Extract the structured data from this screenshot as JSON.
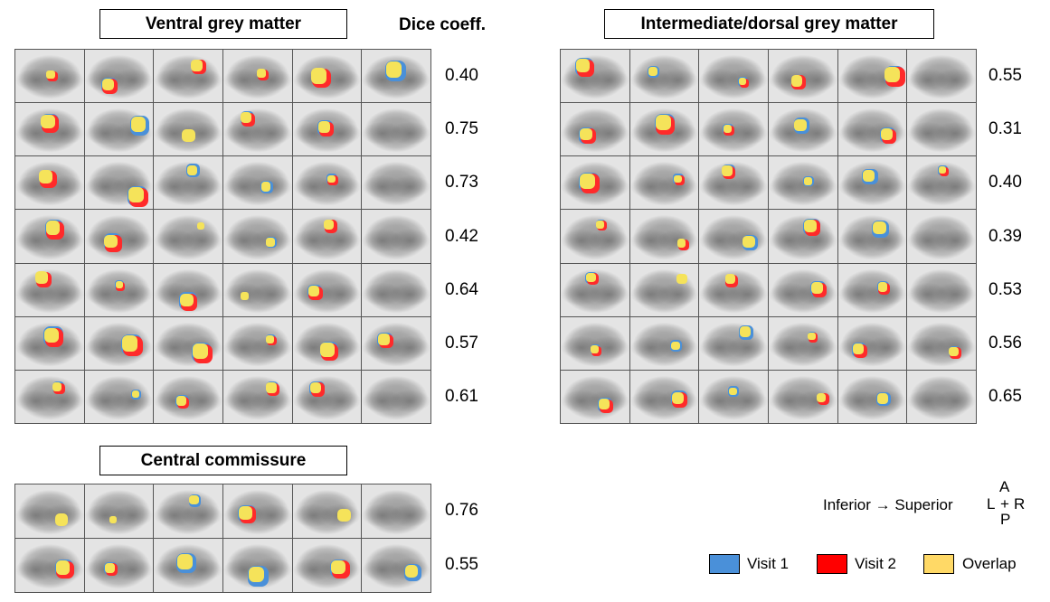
{
  "panels": {
    "ventral": {
      "title": "Ventral grey matter",
      "dice": [
        "0.40",
        "0.75",
        "0.73",
        "0.42",
        "0.64",
        "0.57",
        "0.61"
      ]
    },
    "intermediate": {
      "title": "Intermediate/dorsal grey matter",
      "dice": [
        "0.55",
        "0.31",
        "0.40",
        "0.39",
        "0.53",
        "0.56",
        "0.65"
      ]
    },
    "central": {
      "title": "Central commissure",
      "dice": [
        "0.76",
        "0.55"
      ]
    }
  },
  "dice_header": "Dice coeff.",
  "direction_label": "Inferior → Superior",
  "orientation": {
    "anterior": "A",
    "left": "L",
    "center": "+",
    "right": "R",
    "posterior": "P"
  },
  "legend": [
    {
      "label": "Visit 1",
      "color": "#4a90d9"
    },
    {
      "label": "Visit 2",
      "color": "#ff0000"
    },
    {
      "label": "Overlap",
      "color": "#ffd966"
    }
  ],
  "columns_per_row": 6
}
